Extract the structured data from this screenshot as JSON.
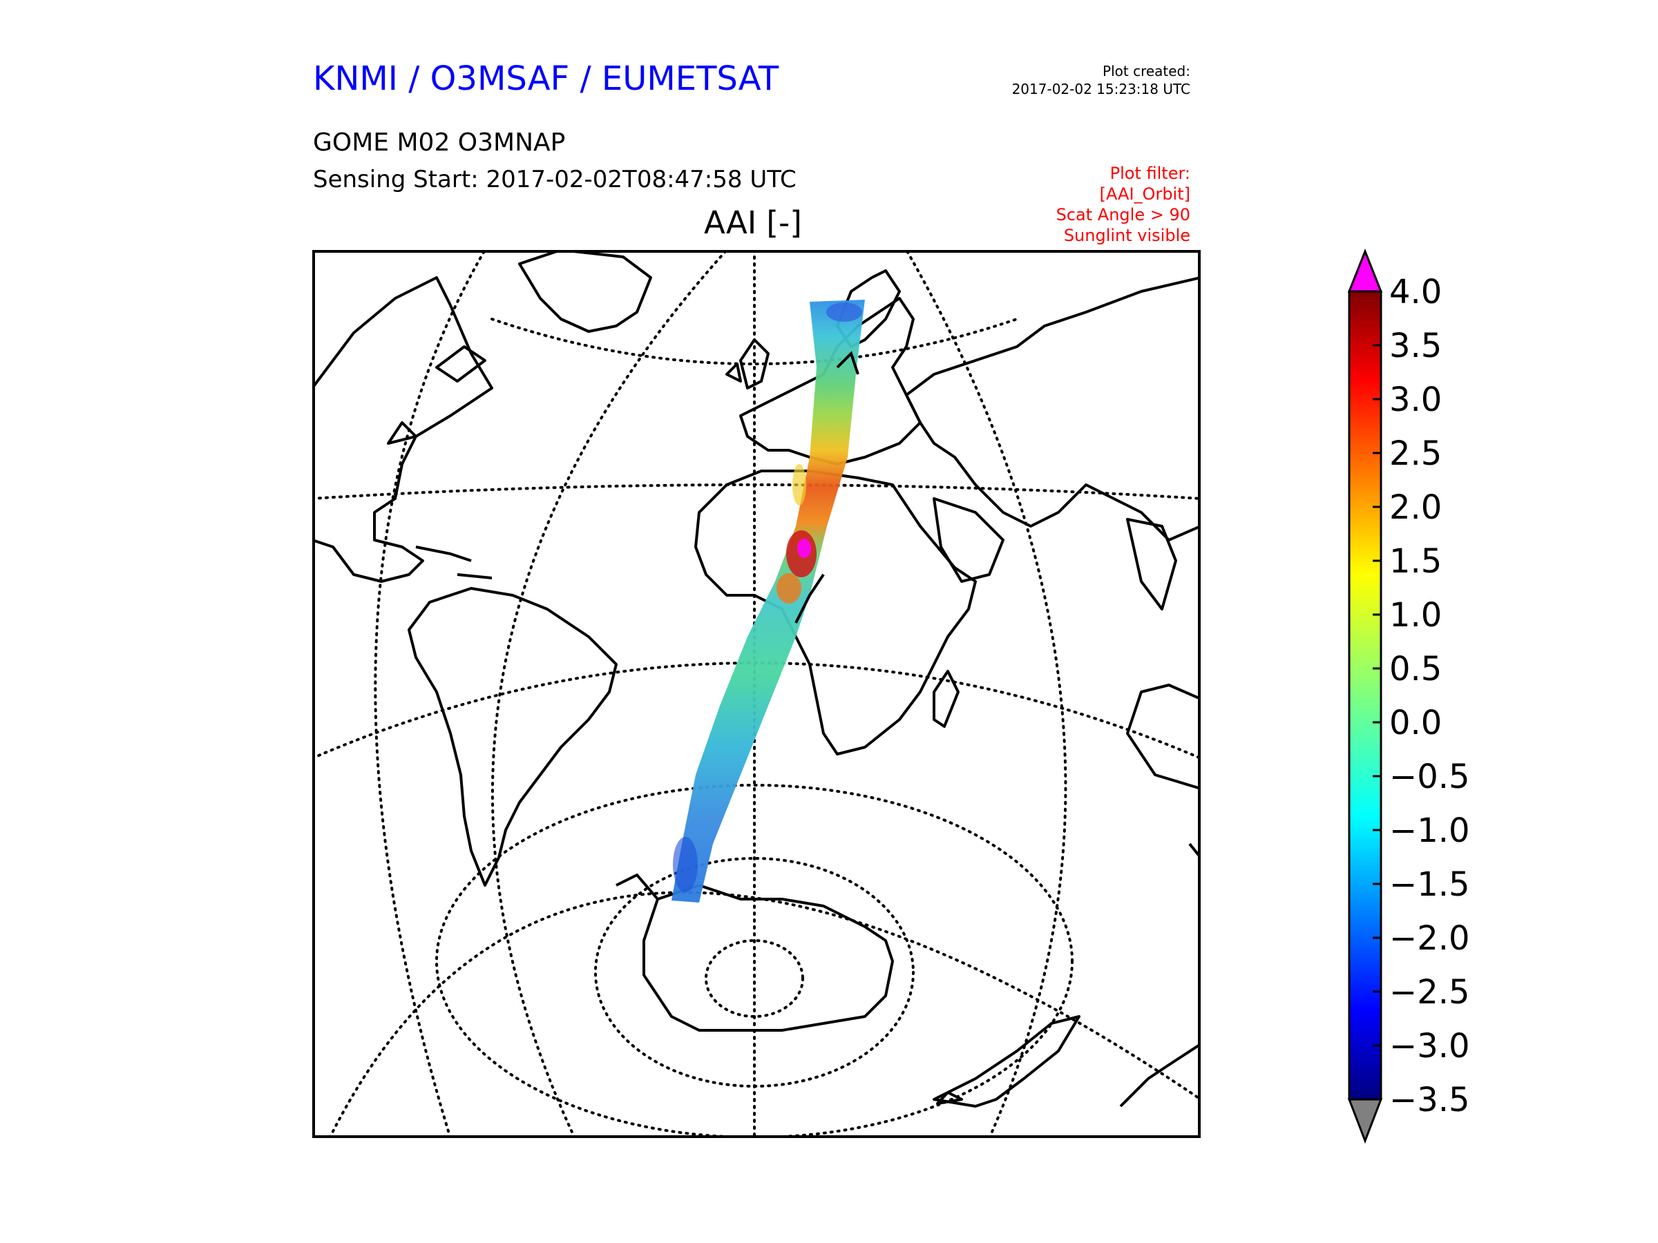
{
  "header": {
    "org_title": "KNMI / O3MSAF / EUMETSAT",
    "product": "GOME M02 O3MNAP",
    "sensing_start": "Sensing Start: 2017-02-02T08:47:58 UTC",
    "plot_created_label": "Plot created:",
    "plot_created_time": "2017-02-02 15:23:18 UTC"
  },
  "filter": {
    "line1": "Plot filter:",
    "line2": "[AAI_Orbit]",
    "line3": "Scat Angle > 90",
    "line4": "Sunglint visible"
  },
  "plot": {
    "title": "AAI [-]"
  },
  "colorbar": {
    "ticks": [
      "4.0",
      "3.5",
      "3.0",
      "2.5",
      "2.0",
      "1.5",
      "1.0",
      "0.5",
      "0.0",
      "−0.5",
      "−1.0",
      "−1.5",
      "−2.0",
      "−2.5",
      "−3.0",
      "−3.5"
    ],
    "tick_values": [
      4.0,
      3.5,
      3.0,
      2.5,
      2.0,
      1.5,
      1.0,
      0.5,
      0.0,
      -0.5,
      -1.0,
      -1.5,
      -2.0,
      -2.5,
      -3.0,
      -3.5
    ],
    "range": [
      -3.5,
      4.0
    ],
    "colormap": "jet",
    "over_color": "#ff00ff",
    "under_color": "#808080"
  },
  "map": {
    "projection": "orthographic",
    "swath": "GOME M02 orbit swath, Scandinavia to Antarctica",
    "graticule": "dotted",
    "coastlines": "black"
  }
}
